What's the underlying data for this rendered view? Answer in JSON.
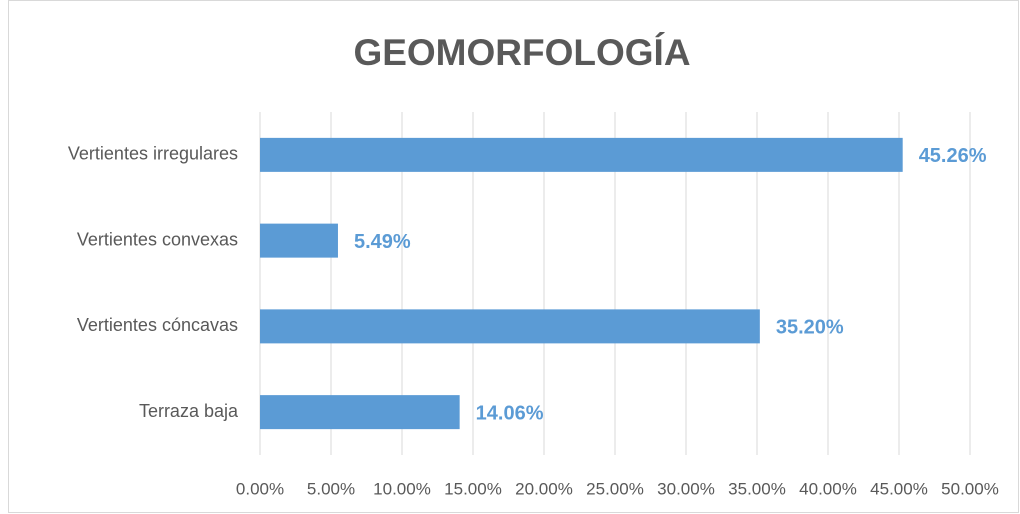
{
  "chart_data": {
    "type": "bar",
    "orientation": "horizontal",
    "title": "GEOMORFOLOGÍA",
    "categories": [
      "Vertientes irregulares",
      "Vertientes convexas",
      "Vertientes cóncavas",
      "Terraza baja"
    ],
    "values": [
      45.26,
      5.49,
      35.2,
      14.06
    ],
    "value_labels": [
      "45.26%",
      "5.49%",
      "35.20%",
      "14.06%"
    ],
    "color": "#5b9bd5",
    "xlim": [
      0,
      50
    ],
    "xticks": [
      {
        "value": 0,
        "label": "0.00%"
      },
      {
        "value": 5,
        "label": "5.00%"
      },
      {
        "value": 10,
        "label": "10.00%"
      },
      {
        "value": 15,
        "label": "15.00%"
      },
      {
        "value": 20,
        "label": "20.00%"
      },
      {
        "value": 25,
        "label": "25.00%"
      },
      {
        "value": 30,
        "label": "30.00%"
      },
      {
        "value": 35,
        "label": "35.00%"
      },
      {
        "value": 40,
        "label": "40.00%"
      },
      {
        "value": 45,
        "label": "45.00%"
      },
      {
        "value": 50,
        "label": "50.00%"
      }
    ],
    "grid": true
  }
}
